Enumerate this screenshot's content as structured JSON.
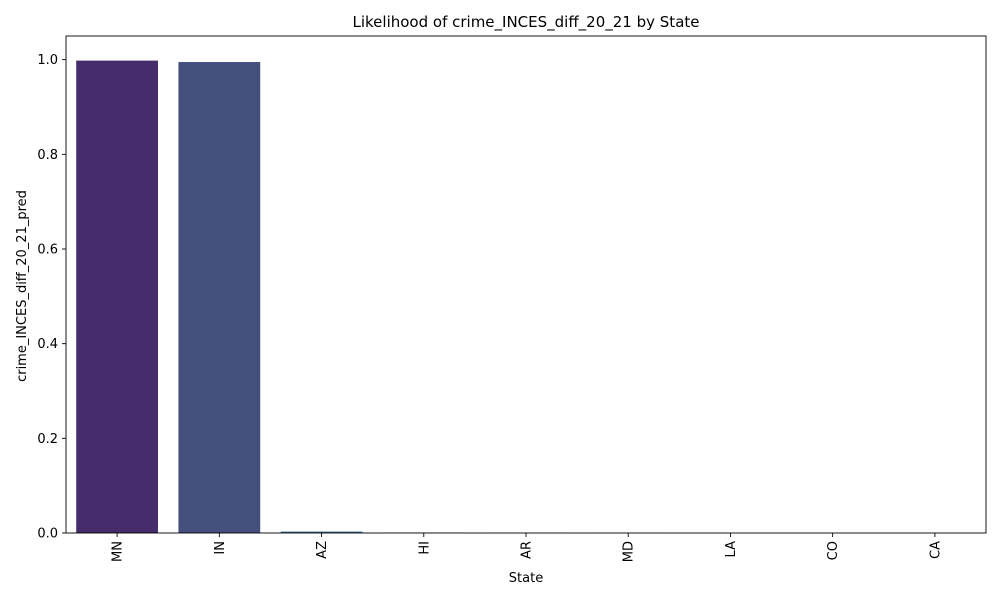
{
  "chart_data": {
    "type": "bar",
    "title": "Likelihood of crime_INCES_diff_20_21 by State",
    "xlabel": "State",
    "ylabel": "crime_INCES_diff_20_21_pred",
    "categories": [
      "MN",
      "IN",
      "AZ",
      "HI",
      "AR",
      "MD",
      "LA",
      "CO",
      "CA"
    ],
    "values": [
      0.998,
      0.995,
      0.003,
      0.001,
      0.0005,
      0.0003,
      0.0002,
      0.0001,
      0.0001
    ],
    "ylim": [
      0,
      1.05
    ],
    "yticks": [
      0.0,
      0.2,
      0.4,
      0.6,
      0.8,
      1.0
    ],
    "ytick_labels": [
      "0.0",
      "0.2",
      "0.4",
      "0.6",
      "0.8",
      "1.0"
    ],
    "grid": false,
    "legend": "none",
    "colors": [
      "#472c6b",
      "#454f7e",
      "#3a6a8a",
      "#2f818d",
      "#26988b",
      "#2db27d",
      "#55c567",
      "#8fd744",
      "#c8e020"
    ]
  }
}
